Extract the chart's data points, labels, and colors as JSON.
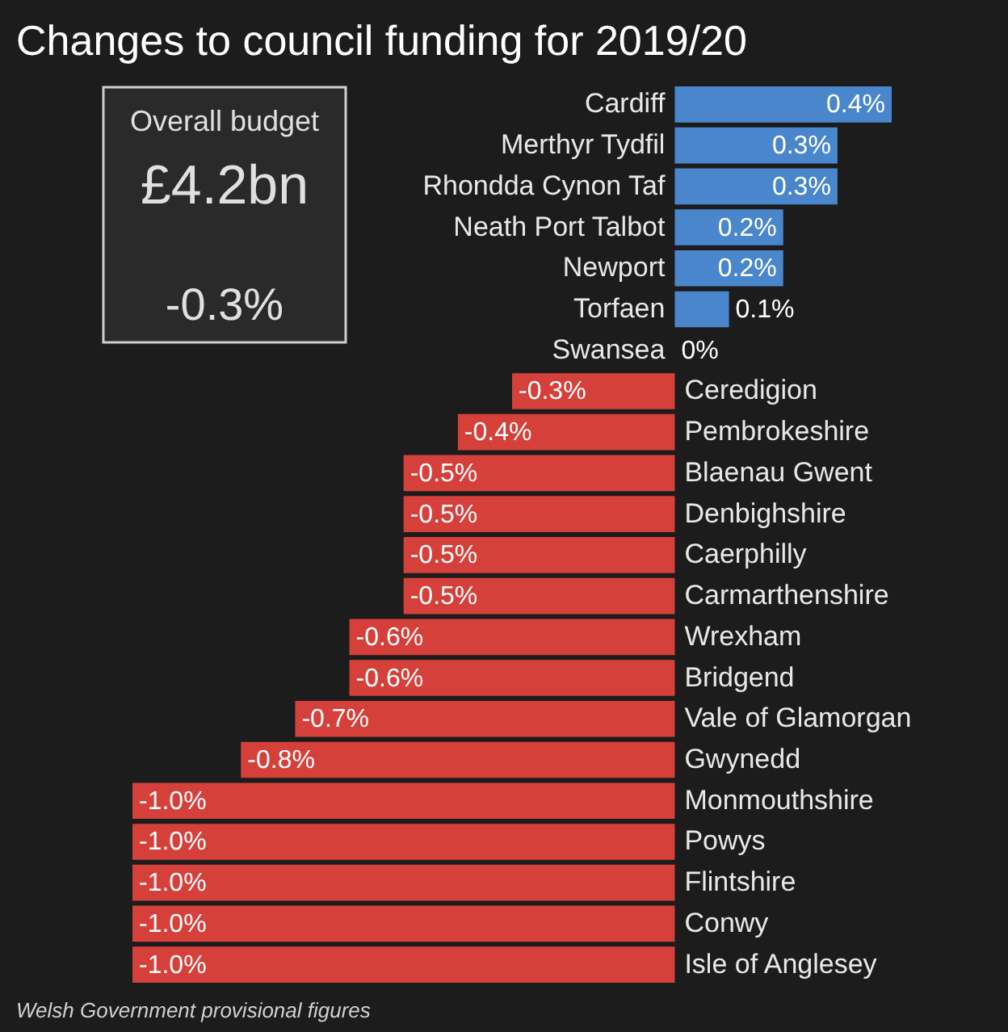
{
  "chart_data": {
    "type": "bar",
    "orientation": "horizontal",
    "title": "Changes to council funding for 2019/20",
    "categories": [
      "Cardiff",
      "Merthyr Tydfil",
      "Rhondda Cynon Taf",
      "Neath Port Talbot",
      "Newport",
      "Torfaen",
      "Swansea",
      "Ceredigion",
      "Pembrokeshire",
      "Blaenau Gwent",
      "Denbighshire",
      "Caerphilly",
      "Carmarthenshire",
      "Wrexham",
      "Bridgend",
      "Vale of Glamorgan",
      "Gwynedd",
      "Monmouthshire",
      "Powys",
      "Flintshire",
      "Conwy",
      "Isle of Anglesey"
    ],
    "values": [
      0.4,
      0.3,
      0.3,
      0.2,
      0.2,
      0.1,
      0,
      -0.3,
      -0.4,
      -0.5,
      -0.5,
      -0.5,
      -0.5,
      -0.6,
      -0.6,
      -0.7,
      -0.8,
      -1.0,
      -1.0,
      -1.0,
      -1.0,
      -1.0
    ],
    "value_labels": [
      "0.4%",
      "0.3%",
      "0.3%",
      "0.2%",
      "0.2%",
      "0.1%",
      "0%",
      "-0.3%",
      "-0.4%",
      "-0.5%",
      "-0.5%",
      "-0.5%",
      "-0.5%",
      "-0.6%",
      "-0.6%",
      "-0.7%",
      "-0.8%",
      "-1.0%",
      "-1.0%",
      "-1.0%",
      "-1.0%",
      "-1.0%"
    ],
    "colors": [
      "#4a86cc",
      "#4a86cc",
      "#4a86cc",
      "#4a86cc",
      "#4a86cc",
      "#4a86cc",
      "#4a86cc",
      "#d6403a",
      "#d6403a",
      "#d6403a",
      "#d6403a",
      "#d6403a",
      "#d6403a",
      "#d6403a",
      "#d6403a",
      "#d6403a",
      "#d6403a",
      "#d6403a",
      "#d6403a",
      "#d6403a",
      "#d6403a",
      "#d6403a"
    ],
    "annotations": [
      "Overall budget",
      "£4.2bn",
      "-0.3%",
      "Welsh Government provisional figures"
    ]
  }
}
